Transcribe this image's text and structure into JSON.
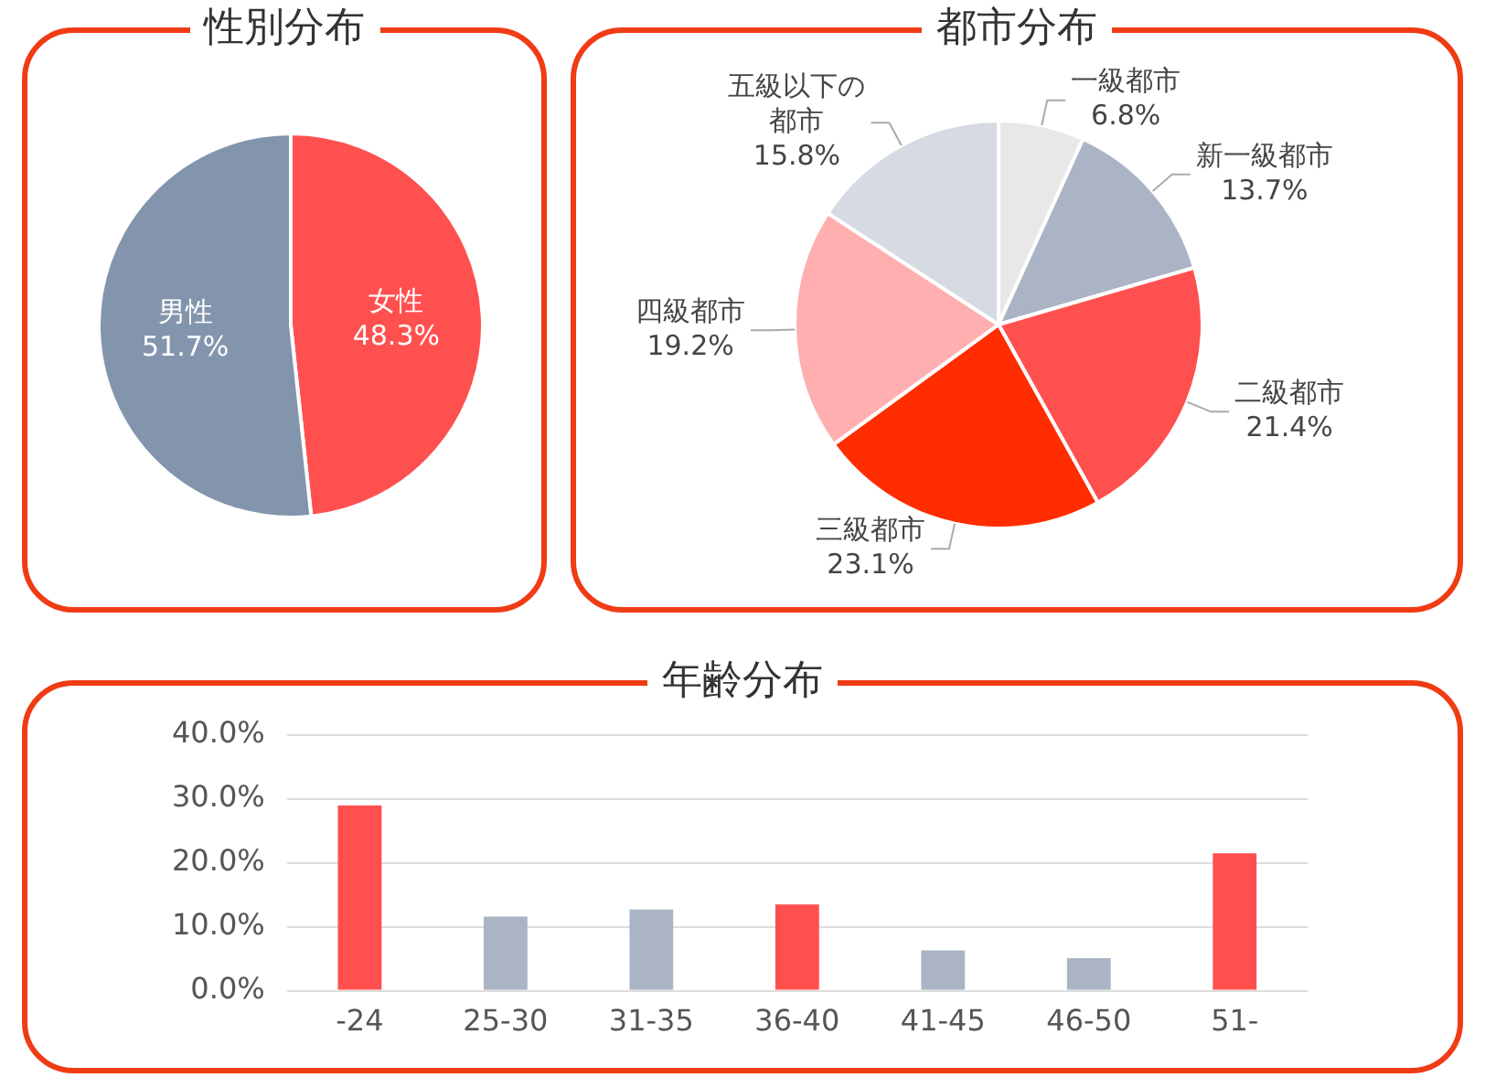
{
  "chart_data": [
    {
      "type": "pie",
      "title": "性別分布",
      "categories": [
        "女性",
        "男性"
      ],
      "values": [
        48.3,
        51.7
      ],
      "colors": [
        "#ff5050",
        "#8395ad"
      ],
      "value_labels": [
        "48.3%",
        "51.7%"
      ],
      "legend": false
    },
    {
      "type": "pie",
      "title": "都市分布",
      "categories": [
        "一級都市",
        "新一級都市",
        "二級都市",
        "三級都市",
        "四級都市",
        "五級以下の都市"
      ],
      "values": [
        6.8,
        13.7,
        21.4,
        23.1,
        19.2,
        15.8
      ],
      "colors": [
        "#e8e8e8",
        "#aab4c5",
        "#ff5050",
        "#ff2d00",
        "#ffafaf",
        "#d5dae3"
      ],
      "value_labels": [
        "6.8%",
        "13.7%",
        "21.4%",
        "23.1%",
        "19.2%",
        "15.8%"
      ],
      "legend": false
    },
    {
      "type": "bar",
      "title": "年齢分布",
      "categories": [
        "-24",
        "25-30",
        "31-35",
        "36-40",
        "41-45",
        "46-50",
        "51-"
      ],
      "values": [
        29.0,
        11.6,
        12.7,
        13.5,
        6.3,
        5.1,
        21.5
      ],
      "colors": [
        "#ff5050",
        "#aab4c5",
        "#aab4c5",
        "#ff5050",
        "#aab4c5",
        "#aab4c5",
        "#ff5050"
      ],
      "ylim": [
        0,
        40
      ],
      "yticks": [
        {
          "value": 0,
          "label": "0.0%"
        },
        {
          "value": 10,
          "label": "10.0%"
        },
        {
          "value": 20,
          "label": "20.0%"
        },
        {
          "value": 30,
          "label": "30.0%"
        },
        {
          "value": 40,
          "label": "40.0%"
        }
      ],
      "grid": "y",
      "legend": false
    }
  ]
}
